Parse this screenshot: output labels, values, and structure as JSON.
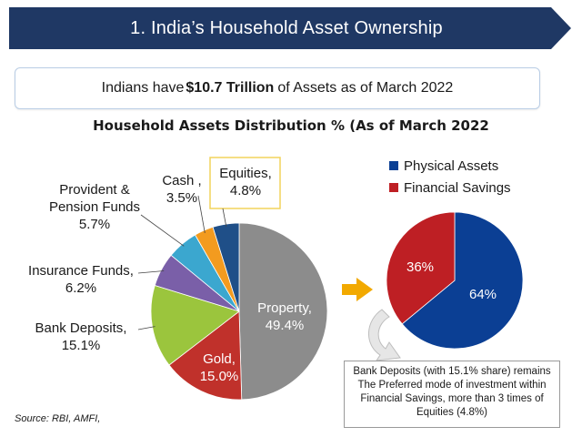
{
  "header": {
    "title": "1. India’s Household Asset Ownership"
  },
  "headline": {
    "prefix": "Indians have",
    "amount": "$10.7 Trillion",
    "suffix": "of Assets as of March 2022"
  },
  "source": "Source: RBI, AMFI,",
  "note": "Bank Deposits (with 15.1% share) remains The Preferred mode of investment within Financial Savings, more than 3 times of Equities (4.8%)",
  "colors": {
    "banner": "#1f3864",
    "property": "#8c8c8c",
    "gold": "#c0312b",
    "bank": "#9bc53d",
    "insurance": "#7a5fa8",
    "provident": "#3ba7cf",
    "cash": "#f39b1f",
    "equities": "#1f4f88",
    "physical": "#0b3f94",
    "financial": "#be1f24",
    "arrow": "#f2a900"
  },
  "chart_data": [
    {
      "type": "pie",
      "title": "Household Assets Distribution % (As of March 2022",
      "slices": [
        {
          "label": "Property,",
          "value": 49.4,
          "text": "49.4%"
        },
        {
          "label": "Gold,",
          "value": 15.0,
          "text": "15.0%"
        },
        {
          "label": "Bank Deposits,",
          "value": 15.1,
          "text": "15.1%"
        },
        {
          "label": "Insurance Funds,",
          "value": 6.2,
          "text": "6.2%"
        },
        {
          "label": "Provident & Pension Funds,",
          "value": 5.7,
          "text": "5.7%"
        },
        {
          "label": "Cash ,",
          "value": 3.5,
          "text": "3.5%"
        },
        {
          "label": "Equities,",
          "value": 4.8,
          "text": "4.8%"
        }
      ]
    },
    {
      "type": "pie",
      "legend_position": "top",
      "slices": [
        {
          "label": "Physical Assets",
          "value": 64,
          "text": "64%"
        },
        {
          "label": "Financial Savings",
          "value": 36,
          "text": "36%"
        }
      ]
    }
  ]
}
